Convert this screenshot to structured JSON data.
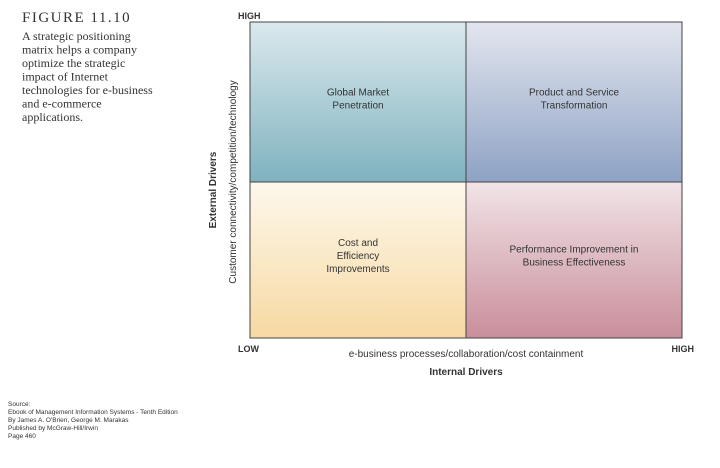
{
  "figure": {
    "label": "FIGURE 11.10",
    "caption": [
      "A strategic positioning",
      "matrix helps a company",
      "optimize the strategic",
      "impact of Internet",
      "technologies for e-business",
      "and e-commerce",
      "applications."
    ]
  },
  "matrix": {
    "y_high": "HIGH",
    "x_low": "LOW",
    "x_high": "HIGH",
    "x_axis_label": "e-business processes/collaboration/cost containment",
    "x_axis_title": "Internal Drivers",
    "y_axis_label": "Customer connectivity/competition/technology",
    "y_axis_title": "External Drivers",
    "quadrants": [
      {
        "lines": [
          "Global Market",
          "Penetration"
        ]
      },
      {
        "lines": [
          "Product and Service",
          "Transformation"
        ]
      },
      {
        "lines": [
          "Cost and",
          "Efficiency",
          "Improvements"
        ]
      },
      {
        "lines": [
          "Performance Improvement in",
          "Business Effectiveness"
        ]
      }
    ]
  },
  "source": [
    "Source:",
    "Ebook of Management Information Systems - Tenth Edition",
    "By James A. O'Brien, George M. Marakas",
    "Published by McGraw-Hill/Irwin",
    "Page 460"
  ]
}
